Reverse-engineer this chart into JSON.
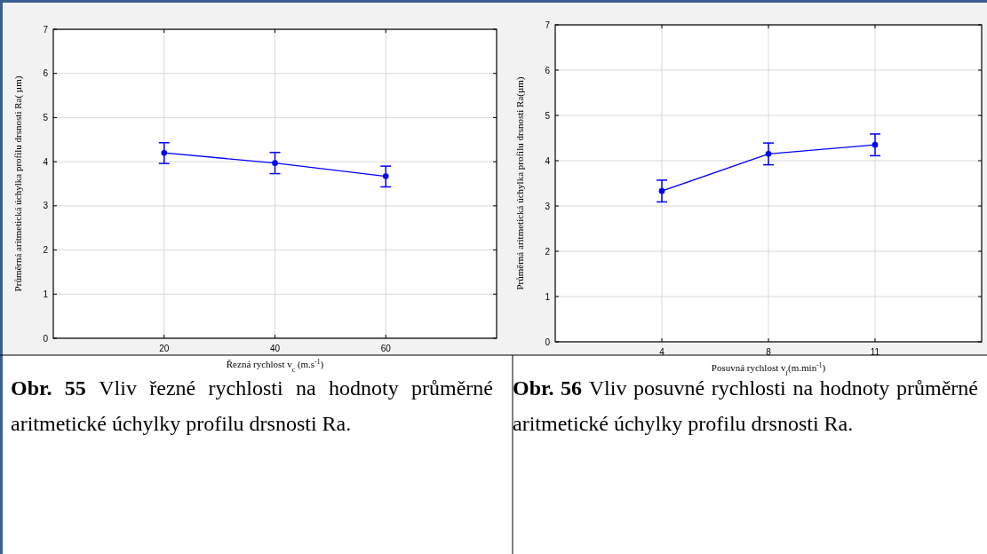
{
  "chart_data": [
    {
      "type": "line",
      "xlabel": "Řezná rychlost v$_{c}$ (m.s$^{-1}$)",
      "ylabel": "Průměrná aritmetická úchylka profilu drsnosti Ra( µm)",
      "categories": [
        "20",
        "40",
        "60"
      ],
      "series": [
        {
          "color": "#0000ff",
          "values": [
            4.2,
            3.97,
            3.67
          ],
          "errors": [
            [
              3.96,
              4.43
            ],
            [
              3.73,
              4.21
            ],
            [
              3.43,
              3.9
            ]
          ]
        }
      ],
      "ylim": [
        0,
        7
      ],
      "yticks": [
        0,
        1,
        2,
        3,
        4,
        5,
        6,
        7
      ],
      "grid": true,
      "marker": "circle",
      "line_style": "solid",
      "annotations": [
        "Obr. 55 Vliv řezné rychlosti na hodnoty průměrné aritmetické úchylky profilu drsnosti Ra."
      ]
    },
    {
      "type": "line",
      "xlabel": "Posuvná rychlost v$_{f}$(m.min$^{-1}$)",
      "ylabel": "Průměrná aritmetická úchylka profilu drsnosti Ra(µm)",
      "categories": [
        "4",
        "8",
        "11"
      ],
      "series": [
        {
          "color": "#0000ff",
          "values": [
            3.33,
            4.15,
            4.35
          ],
          "errors": [
            [
              3.09,
              3.57
            ],
            [
              3.91,
              4.39
            ],
            [
              4.11,
              4.59
            ]
          ]
        }
      ],
      "ylim": [
        0,
        7
      ],
      "yticks": [
        0,
        1,
        2,
        3,
        4,
        5,
        6,
        7
      ],
      "grid": true,
      "marker": "circle",
      "line_style": "solid",
      "annotations": [
        "Obr. 56 Vliv posuvné rychlosti na hodnoty průměrné aritmetické úchylky profilu drsnosti Ra."
      ]
    }
  ]
}
